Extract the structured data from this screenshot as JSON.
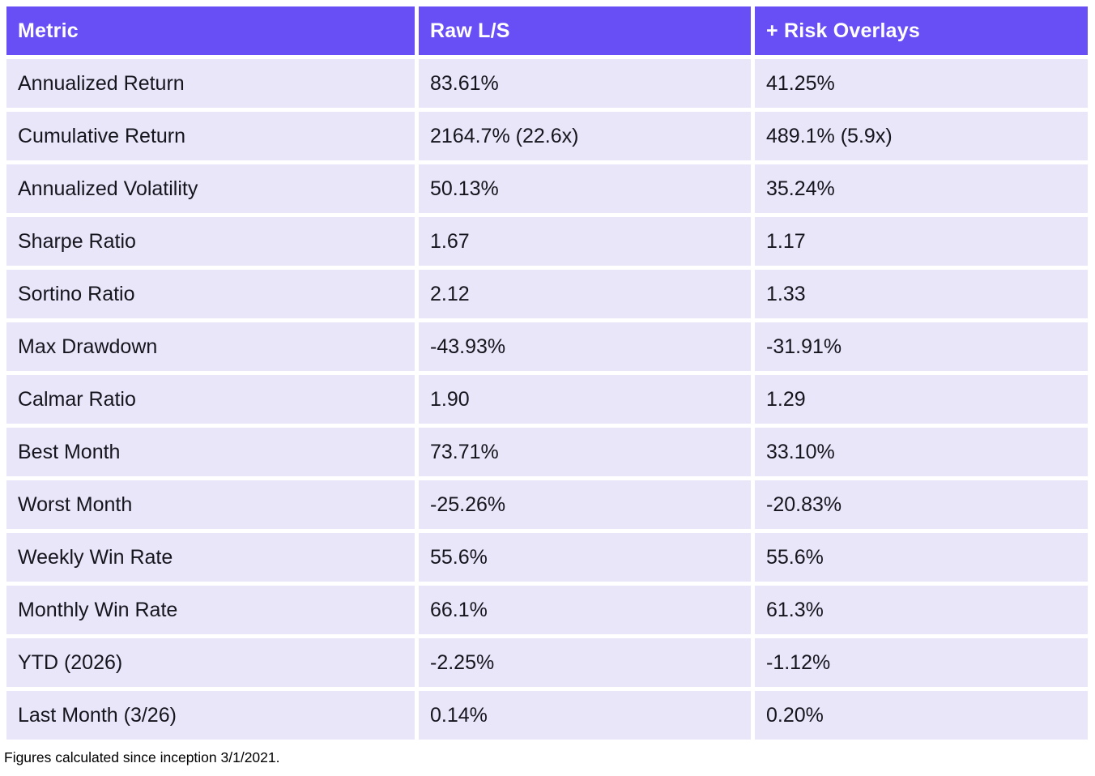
{
  "chart_data": {
    "type": "table",
    "columns": [
      "Metric",
      "Raw L/S",
      "+ Risk Overlays"
    ],
    "rows": [
      {
        "metric": "Annualized Return",
        "raw_ls": "83.61%",
        "risk_overlays": "41.25%"
      },
      {
        "metric": "Cumulative Return",
        "raw_ls": "2164.7% (22.6x)",
        "risk_overlays": "489.1% (5.9x)"
      },
      {
        "metric": "Annualized Volatility",
        "raw_ls": "50.13%",
        "risk_overlays": "35.24%"
      },
      {
        "metric": "Sharpe Ratio",
        "raw_ls": "1.67",
        "risk_overlays": "1.17"
      },
      {
        "metric": "Sortino Ratio",
        "raw_ls": "2.12",
        "risk_overlays": "1.33"
      },
      {
        "metric": "Max Drawdown",
        "raw_ls": "-43.93%",
        "risk_overlays": "-31.91%"
      },
      {
        "metric": "Calmar Ratio",
        "raw_ls": "1.90",
        "risk_overlays": "1.29"
      },
      {
        "metric": "Best Month",
        "raw_ls": "73.71%",
        "risk_overlays": "33.10%"
      },
      {
        "metric": "Worst Month",
        "raw_ls": "-25.26%",
        "risk_overlays": "-20.83%"
      },
      {
        "metric": "Weekly Win Rate",
        "raw_ls": "55.6%",
        "risk_overlays": "55.6%"
      },
      {
        "metric": "Monthly Win Rate",
        "raw_ls": "66.1%",
        "risk_overlays": "61.3%"
      },
      {
        "metric": "YTD (2026)",
        "raw_ls": "-2.25%",
        "risk_overlays": "-1.12%"
      },
      {
        "metric": "Last Month (3/26)",
        "raw_ls": "0.14%",
        "risk_overlays": "0.20%"
      }
    ],
    "footnote": "Figures calculated since inception 3/1/2021.",
    "layout": "header row on violet background, data rows on lavender background, white gaps between all cells"
  },
  "colors": {
    "header_bg": "#684FF5",
    "header_text": "#FFFFFF",
    "row_bg": "#E9E6FA",
    "cell_text": "#15151D",
    "gap": "#FFFFFF"
  }
}
